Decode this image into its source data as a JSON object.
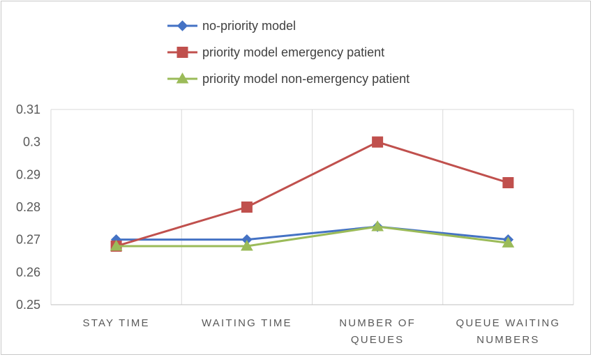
{
  "chart_data": {
    "type": "line",
    "categories": [
      [
        "STAY TIME"
      ],
      [
        "WAITING TIME"
      ],
      [
        "NUMBER OF",
        "QUEUES"
      ],
      [
        "QUEUE WAITING",
        "NUMBERS"
      ]
    ],
    "series": [
      {
        "name": "no-priority model",
        "color": "#4472C4",
        "marker": "diamond",
        "values": [
          0.27,
          0.27,
          0.274,
          0.27
        ]
      },
      {
        "name": "priority model emergency patient",
        "color": "#C0504D",
        "marker": "square",
        "values": [
          0.268,
          0.28,
          0.3,
          0.2875
        ]
      },
      {
        "name": "priority model non-emergency patient",
        "color": "#9BBB59",
        "marker": "triangle",
        "values": [
          0.268,
          0.268,
          0.274,
          0.269
        ]
      }
    ],
    "ylim": [
      0.25,
      0.31
    ],
    "yticks": [
      "0.25",
      "0.26",
      "0.27",
      "0.28",
      "0.29",
      "0.3",
      "0.31"
    ],
    "legend_position": "top",
    "grid": "vertical category separators"
  }
}
